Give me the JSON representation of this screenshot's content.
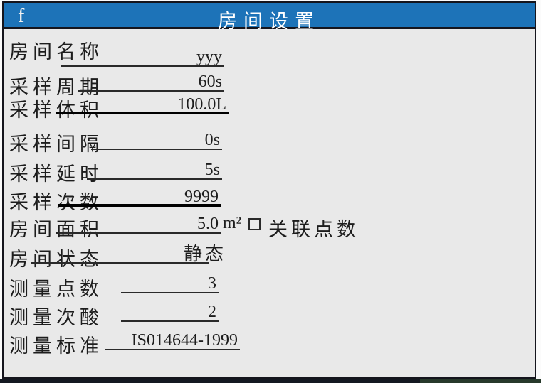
{
  "titlebar": {
    "corner_label": "f",
    "title": "房间设置"
  },
  "form": {
    "rows": [
      {
        "label": "房间名称",
        "value": "yyy"
      },
      {
        "label": "采样周期",
        "value": "60s"
      },
      {
        "label": "采样体积",
        "value": "100.0L"
      },
      {
        "label": "采样间隔",
        "value": "0s"
      },
      {
        "label": "采样延时",
        "value": "5s"
      },
      {
        "label": "采样次数",
        "value": "9999"
      },
      {
        "label": "房间面积",
        "value": "5.0",
        "unit": "m²",
        "checkbox_label": "关联点数",
        "checkbox_checked": false
      },
      {
        "label": "房间状态",
        "value": "静态"
      },
      {
        "label": "测量点数",
        "value": "3"
      },
      {
        "label": "测量次酸",
        "value": "2"
      },
      {
        "label": "测量标准",
        "value": "IS014644-1999"
      }
    ]
  },
  "colors": {
    "titlebar_blue": "#1d73b8",
    "panel_bg": "#e9e9e9",
    "border_dark": "#15151d",
    "text": "#1d1d1d"
  }
}
